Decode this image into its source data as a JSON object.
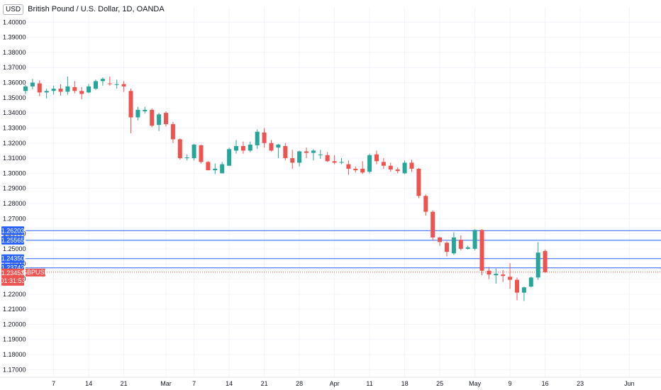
{
  "header": {
    "currency_badge": "USD",
    "title": "British Pound / U.S. Dollar, 1D, OANDA"
  },
  "colors": {
    "up": "#26a69a",
    "down": "#ef5350",
    "level_line": "#2962ff",
    "level_tag_bg": "#2962ff",
    "last_price_bg": "#ef5350",
    "grid": "#f0f3fa",
    "axis_text": "#131722"
  },
  "last_price": {
    "value": "1.23453",
    "countdown": "01:31:53",
    "symbol": "GBPUSD"
  },
  "chart_data": {
    "type": "candlestick",
    "title": "British Pound / U.S. Dollar, 1D, OANDA",
    "ylim": [
      1.165,
      1.41
    ],
    "y_ticks": [
      "1.40000",
      "1.39000",
      "1.38000",
      "1.37000",
      "1.36000",
      "1.35000",
      "1.34000",
      "1.33000",
      "1.32000",
      "1.31000",
      "1.30000",
      "1.29000",
      "1.28000",
      "1.27000",
      "1.26000",
      "1.25000",
      "1.24000",
      "1.23000",
      "1.22000",
      "1.21000",
      "1.20000",
      "1.19000",
      "1.18000",
      "1.17000"
    ],
    "x_ticks": [
      {
        "label": "7",
        "index": 4
      },
      {
        "label": "14",
        "index": 9
      },
      {
        "label": "21",
        "index": 14
      },
      {
        "label": "Mar",
        "index": 20
      },
      {
        "label": "7",
        "index": 24
      },
      {
        "label": "14",
        "index": 29
      },
      {
        "label": "21",
        "index": 34
      },
      {
        "label": "28",
        "index": 39
      },
      {
        "label": "Apr",
        "index": 44
      },
      {
        "label": "11",
        "index": 49
      },
      {
        "label": "18",
        "index": 54
      },
      {
        "label": "25",
        "index": 59
      },
      {
        "label": "May",
        "index": 64
      },
      {
        "label": "9",
        "index": 69
      },
      {
        "label": "16",
        "index": 74
      },
      {
        "label": "23",
        "index": 79
      },
      {
        "label": "Jun",
        "index": 86
      }
    ],
    "levels": [
      {
        "value": 1.26203,
        "label": "1.26203"
      },
      {
        "value": 1.25565,
        "label": "1.25565"
      },
      {
        "value": 1.2435,
        "label": "1.24350"
      },
      {
        "value": 1.23742,
        "label": "1.23742"
      }
    ],
    "candles": [
      [
        1.3545,
        1.3585,
        1.3525,
        1.3575
      ],
      [
        1.3575,
        1.3625,
        1.3555,
        1.36
      ],
      [
        1.3595,
        1.3615,
        1.351,
        1.3535
      ],
      [
        1.3535,
        1.356,
        1.3495,
        1.3545
      ],
      [
        1.3545,
        1.358,
        1.352,
        1.356
      ],
      [
        1.356,
        1.359,
        1.3515,
        1.354
      ],
      [
        1.354,
        1.364,
        1.352,
        1.3575
      ],
      [
        1.357,
        1.361,
        1.353,
        1.3545
      ],
      [
        1.3545,
        1.357,
        1.349,
        1.3525
      ],
      [
        1.3535,
        1.359,
        1.353,
        1.3575
      ],
      [
        1.356,
        1.362,
        1.355,
        1.361
      ],
      [
        1.361,
        1.3635,
        1.358,
        1.3625
      ],
      [
        1.3595,
        1.364,
        1.358,
        1.359
      ],
      [
        1.3585,
        1.362,
        1.356,
        1.359
      ],
      [
        1.359,
        1.361,
        1.354,
        1.3575
      ],
      [
        1.3545,
        1.356,
        1.3265,
        1.337
      ],
      [
        1.337,
        1.344,
        1.335,
        1.342
      ],
      [
        1.341,
        1.344,
        1.3395,
        1.342
      ],
      [
        1.342,
        1.343,
        1.3305,
        1.3315
      ],
      [
        1.332,
        1.34,
        1.328,
        1.339
      ],
      [
        1.34,
        1.341,
        1.331,
        1.3325
      ],
      [
        1.3325,
        1.334,
        1.32,
        1.3225
      ],
      [
        1.3225,
        1.323,
        1.309,
        1.31
      ],
      [
        1.31,
        1.3125,
        1.3085,
        1.3105
      ],
      [
        1.31,
        1.3195,
        1.3085,
        1.319
      ],
      [
        1.3185,
        1.319,
        1.3065,
        1.3075
      ],
      [
        1.3075,
        1.308,
        1.302,
        1.302
      ],
      [
        1.302,
        1.3065,
        1.2995,
        1.303
      ],
      [
        1.3,
        1.3075,
        1.3,
        1.306
      ],
      [
        1.305,
        1.317,
        1.305,
        1.316
      ],
      [
        1.315,
        1.322,
        1.313,
        1.318
      ],
      [
        1.318,
        1.321,
        1.313,
        1.315
      ],
      [
        1.315,
        1.321,
        1.314,
        1.319
      ],
      [
        1.3185,
        1.329,
        1.316,
        1.3275
      ],
      [
        1.327,
        1.33,
        1.317,
        1.32
      ],
      [
        1.32,
        1.322,
        1.3145,
        1.315
      ],
      [
        1.317,
        1.3195,
        1.31,
        1.319
      ],
      [
        1.318,
        1.32,
        1.3085,
        1.31
      ],
      [
        1.31,
        1.3155,
        1.303,
        1.307
      ],
      [
        1.307,
        1.315,
        1.3045,
        1.3145
      ],
      [
        1.3145,
        1.317,
        1.31,
        1.3135
      ],
      [
        1.3135,
        1.316,
        1.3085,
        1.315
      ],
      [
        1.3125,
        1.3155,
        1.3095,
        1.3125
      ],
      [
        1.312,
        1.314,
        1.3075,
        1.308
      ],
      [
        1.308,
        1.312,
        1.306,
        1.307
      ],
      [
        1.307,
        1.31,
        1.306,
        1.3075
      ],
      [
        1.306,
        1.3085,
        1.299,
        1.303
      ],
      [
        1.303,
        1.3045,
        1.3005,
        1.302
      ],
      [
        1.303,
        1.308,
        1.2995,
        1.3005
      ],
      [
        1.301,
        1.313,
        1.3,
        1.312
      ],
      [
        1.3125,
        1.315,
        1.306,
        1.308
      ],
      [
        1.3075,
        1.31,
        1.303,
        1.305
      ],
      [
        1.305,
        1.307,
        1.301,
        1.3025
      ],
      [
        1.3025,
        1.304,
        1.3,
        1.3015
      ],
      [
        1.3,
        1.3085,
        1.2995,
        1.307
      ],
      [
        1.307,
        1.309,
        1.301,
        1.303
      ],
      [
        1.303,
        1.3035,
        1.2835,
        1.285
      ],
      [
        1.285,
        1.286,
        1.272,
        1.2745
      ],
      [
        1.2745,
        1.2755,
        1.2555,
        1.2575
      ],
      [
        1.2575,
        1.258,
        1.252,
        1.2545
      ],
      [
        1.254,
        1.255,
        1.245,
        1.248
      ],
      [
        1.247,
        1.261,
        1.246,
        1.2575
      ],
      [
        1.256,
        1.259,
        1.249,
        1.25
      ],
      [
        1.25,
        1.252,
        1.2495,
        1.251
      ],
      [
        1.25,
        1.263,
        1.249,
        1.2625
      ],
      [
        1.2625,
        1.263,
        1.2325,
        1.2355
      ],
      [
        1.2355,
        1.238,
        1.23,
        1.233
      ],
      [
        1.2325,
        1.237,
        1.227,
        1.2335
      ],
      [
        1.233,
        1.236,
        1.228,
        1.232
      ],
      [
        1.2315,
        1.2405,
        1.2235,
        1.2295
      ],
      [
        1.2295,
        1.231,
        1.216,
        1.221
      ],
      [
        1.221,
        1.225,
        1.2155,
        1.2245
      ],
      [
        1.225,
        1.2315,
        1.2245,
        1.231
      ],
      [
        1.231,
        1.2545,
        1.2295,
        1.2475
      ],
      [
        1.2485,
        1.2495,
        1.234,
        1.2345
      ]
    ]
  }
}
